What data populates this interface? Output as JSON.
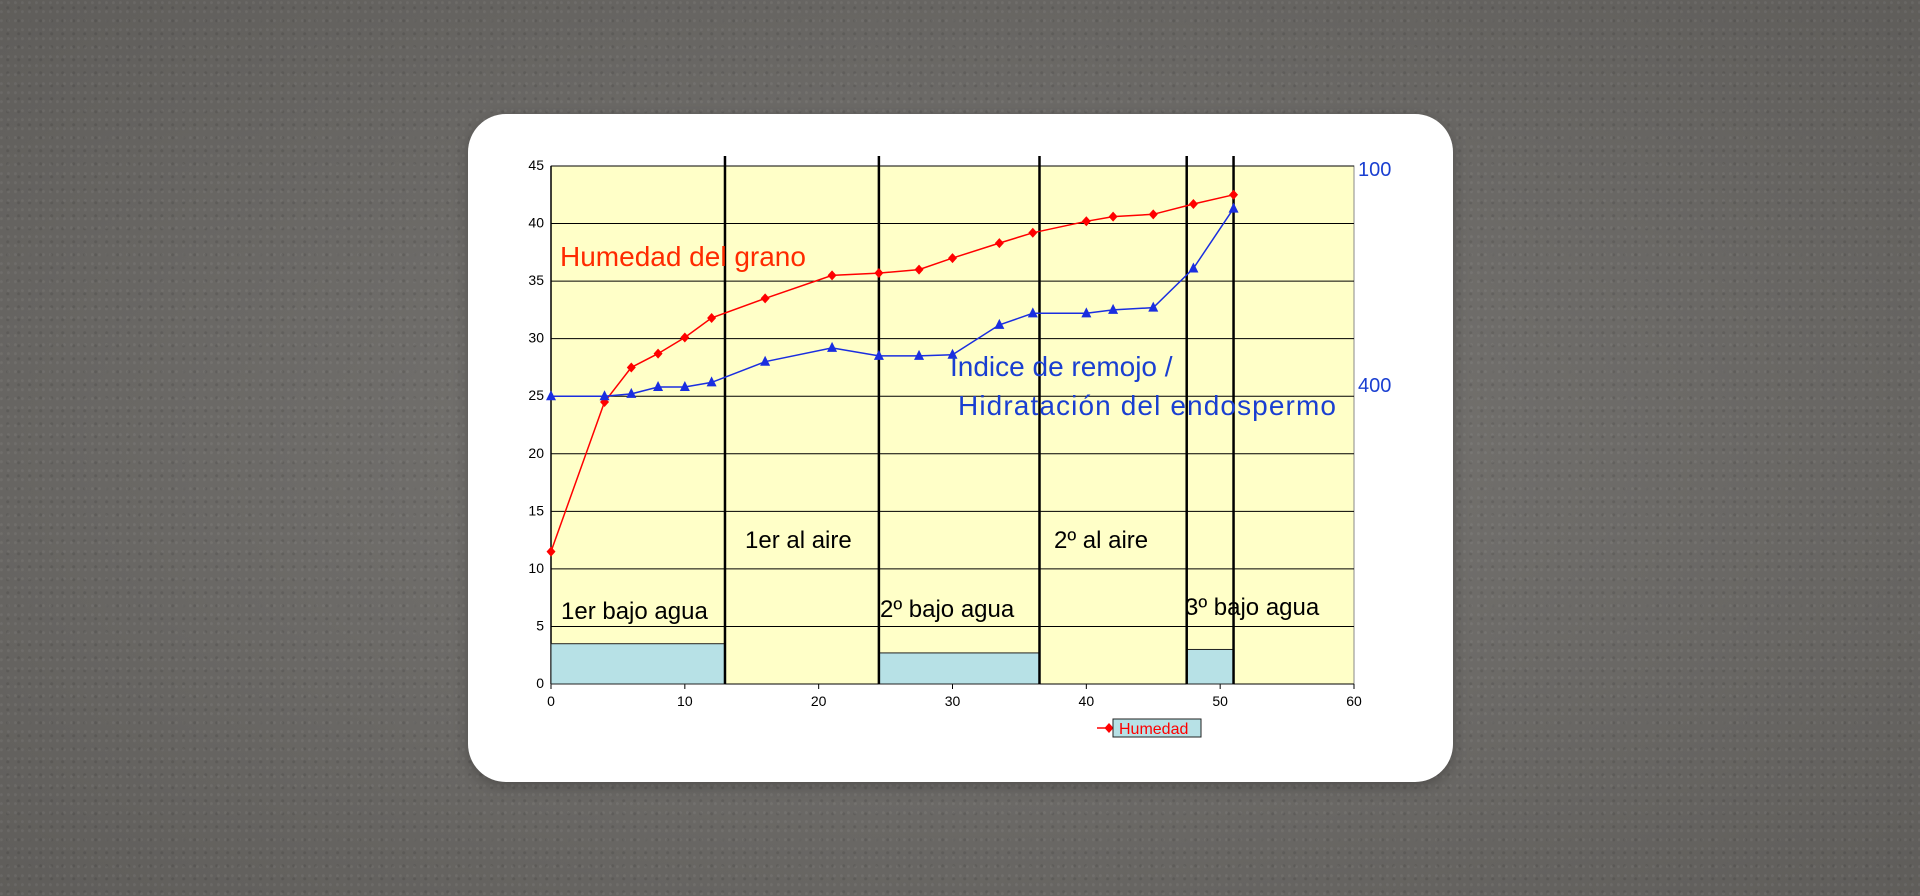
{
  "chart_data": {
    "type": "line",
    "x_axis": {
      "min": 0,
      "max": 60,
      "ticks": [
        0,
        10,
        20,
        30,
        40,
        50,
        60
      ]
    },
    "y_axis_left": {
      "min": 0,
      "max": 45,
      "ticks": [
        0,
        5,
        10,
        15,
        20,
        25,
        30,
        35,
        40,
        45
      ]
    },
    "y_axis_right": {
      "tick_labels": [
        "100",
        "400"
      ],
      "color": "#1a3fd1"
    },
    "grid": true,
    "plot_background": "#ffffc8",
    "series": [
      {
        "name": "Humedad",
        "color": "#ff0000",
        "marker": "diamond",
        "points": [
          [
            0,
            11.5
          ],
          [
            4,
            24.5
          ],
          [
            6,
            27.5
          ],
          [
            8,
            28.7
          ],
          [
            10,
            30.1
          ],
          [
            12,
            31.8
          ],
          [
            16,
            33.5
          ],
          [
            21,
            35.5
          ],
          [
            24.5,
            35.7
          ],
          [
            27.5,
            36
          ],
          [
            30,
            37
          ],
          [
            33.5,
            38.3
          ],
          [
            36,
            39.2
          ],
          [
            40,
            40.2
          ],
          [
            42,
            40.6
          ],
          [
            45,
            40.8
          ],
          [
            48,
            41.7
          ],
          [
            51,
            42.5
          ]
        ]
      },
      {
        "name": "",
        "color": "#1a2ee0",
        "marker": "triangle",
        "points": [
          [
            0,
            25
          ],
          [
            4,
            25
          ],
          [
            6,
            25.2
          ],
          [
            8,
            25.8
          ],
          [
            10,
            25.8
          ],
          [
            12,
            26.2
          ],
          [
            16,
            28
          ],
          [
            21,
            29.2
          ],
          [
            24.5,
            28.5
          ],
          [
            27.5,
            28.5
          ],
          [
            30,
            28.6
          ],
          [
            33.5,
            31.2
          ],
          [
            36,
            32.2
          ],
          [
            40,
            32.2
          ],
          [
            42,
            32.5
          ],
          [
            45,
            32.7
          ],
          [
            48,
            36.1
          ],
          [
            51,
            41.3
          ]
        ]
      }
    ],
    "phase_boundaries": [
      13,
      24.5,
      36.5,
      47.5,
      51
    ],
    "underwater_bars": [
      {
        "x0": 0,
        "x1": 13,
        "height": 3.5
      },
      {
        "x0": 24.5,
        "x1": 36.5,
        "height": 2.7
      },
      {
        "x0": 47.5,
        "x1": 51,
        "height": 3.0
      }
    ],
    "annotations": [
      {
        "id": "humedad-label",
        "text": "Humedad del grano",
        "color": "#ff2a00"
      },
      {
        "id": "indice-label-1",
        "text": "Indice de remojo /",
        "color": "#1a3fd1"
      },
      {
        "id": "indice-label-2",
        "text": "Hidratación del endospermo",
        "color": "#1a3fd1"
      },
      {
        "id": "phase-1",
        "text": "1er bajo agua",
        "color": "#000000"
      },
      {
        "id": "phase-2",
        "text": "1er al aire",
        "color": "#000000"
      },
      {
        "id": "phase-3",
        "text": "2º bajo agua",
        "color": "#000000"
      },
      {
        "id": "phase-4",
        "text": "2º al aire",
        "color": "#000000"
      },
      {
        "id": "phase-5",
        "text": "3º bajo agua",
        "color": "#000000"
      }
    ],
    "legend": {
      "text": "Humedad",
      "placement": "bottom",
      "color": "#ff0000"
    }
  }
}
